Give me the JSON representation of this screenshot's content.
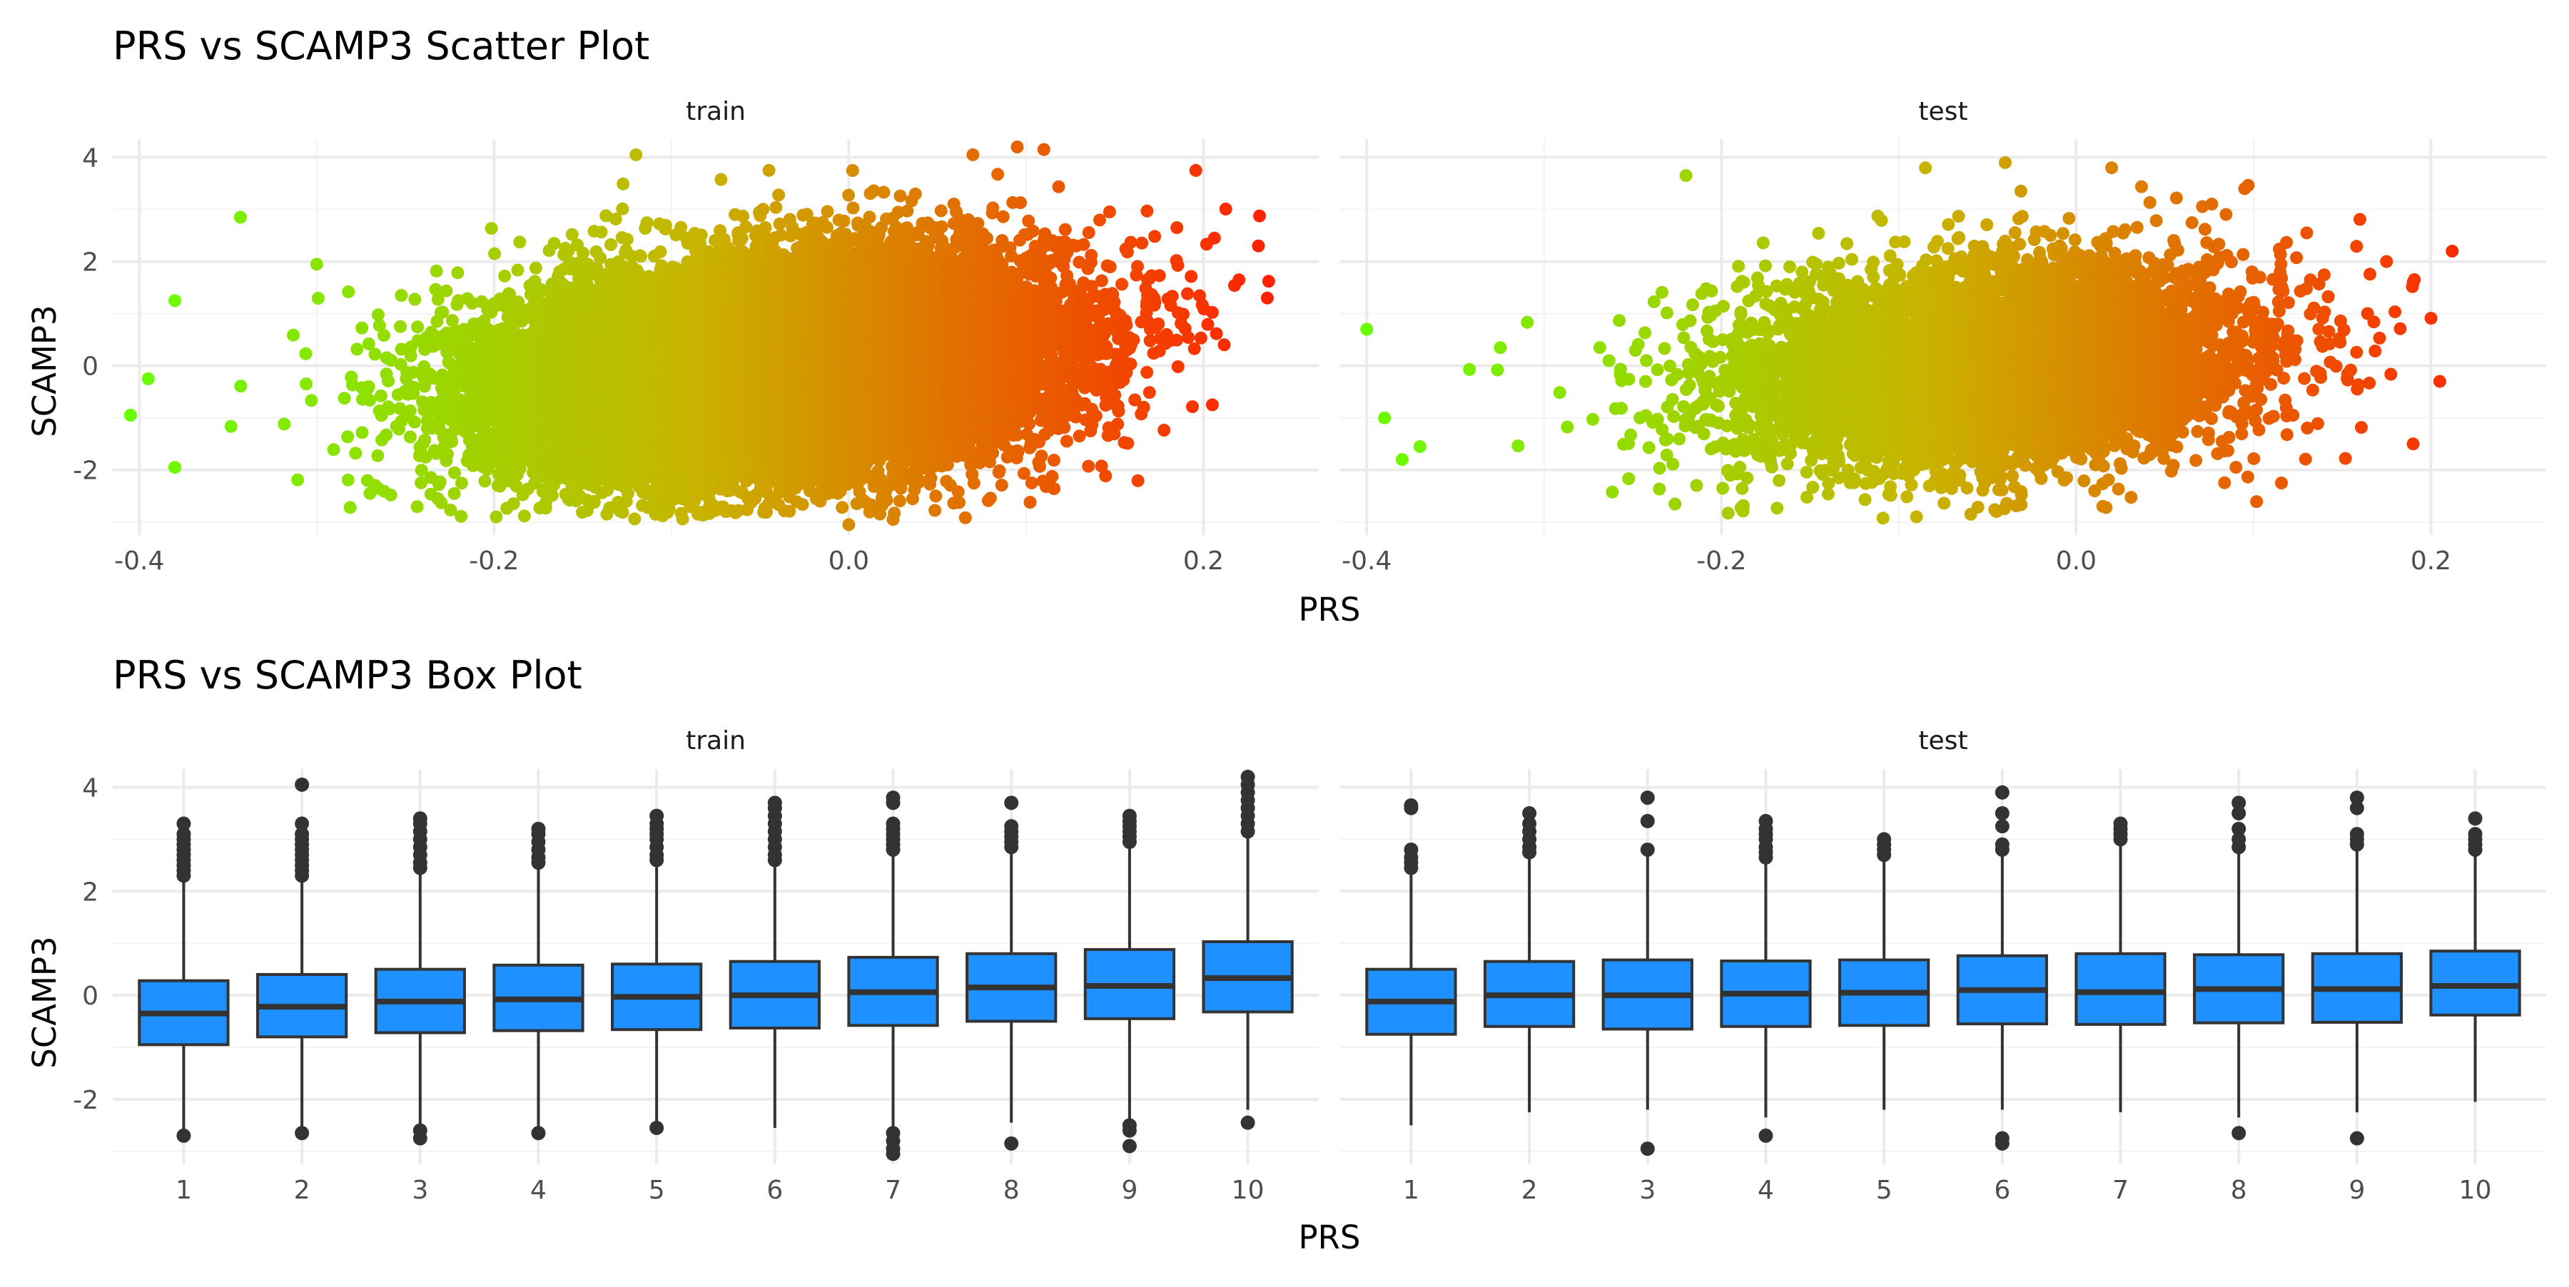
{
  "figure": {
    "scatter_title": "PRS vs SCAMP3 Scatter Plot",
    "box_title": "PRS vs SCAMP3 Box Plot"
  },
  "colors": {
    "low": "#66ff00",
    "mid": "#c8b400",
    "high": "#ff2200",
    "box_fill": "#1e90ff",
    "box_line": "#333333",
    "grid": "#ebebeb"
  },
  "chart_data": [
    {
      "type": "scatter",
      "title": "PRS vs SCAMP3 Scatter Plot",
      "xlabel": "PRS",
      "ylabel": "SCAMP3",
      "xlim": [
        -0.415,
        0.265
      ],
      "ylim": [
        -3.25,
        4.35
      ],
      "x_ticks": [
        -0.4,
        -0.2,
        0.0,
        0.2
      ],
      "x_tick_labels": [
        "-0.4",
        "-0.2",
        "0.0",
        "0.2"
      ],
      "y_ticks": [
        -2,
        0,
        2,
        4
      ],
      "y_tick_labels": [
        "-2",
        "0",
        "2",
        "4"
      ],
      "color_scale": {
        "variable": "PRS",
        "low": "#66ff00",
        "high": "#ff2200"
      },
      "grid": true,
      "panels": [
        {
          "name": "train",
          "approx_points": 20000,
          "x_mean": -0.04,
          "x_sd": 0.075,
          "y_mean": 0.0,
          "y_sd": 1.0,
          "slope": 2.8,
          "outliers": [
            {
              "x": -0.405,
              "y": -0.95
            },
            {
              "x": -0.395,
              "y": -0.25
            },
            {
              "x": -0.38,
              "y": 1.25
            },
            {
              "x": -0.38,
              "y": -1.95
            },
            {
              "x": -0.343,
              "y": 2.85
            },
            {
              "x": -0.3,
              "y": 1.95
            },
            {
              "x": -0.12,
              "y": 4.05
            },
            {
              "x": -0.045,
              "y": 3.75
            },
            {
              "x": 0.07,
              "y": 4.05
            },
            {
              "x": 0.095,
              "y": 4.2
            },
            {
              "x": 0.11,
              "y": 4.15
            },
            {
              "x": 0.185,
              "y": 2.65
            },
            {
              "x": 0.22,
              "y": 1.65
            },
            {
              "x": 0.231,
              "y": 2.3
            },
            {
              "x": 0.236,
              "y": 1.3
            },
            {
              "x": 0.205,
              "y": -0.75
            },
            {
              "x": 0.0,
              "y": -3.05
            },
            {
              "x": -0.085,
              "y": -2.85
            },
            {
              "x": 0.025,
              "y": -2.95
            },
            {
              "x": -0.27,
              "y": -2.45
            }
          ]
        },
        {
          "name": "test",
          "approx_points": 6500,
          "x_mean": -0.045,
          "x_sd": 0.072,
          "y_mean": 0.0,
          "y_sd": 0.95,
          "slope": 2.5,
          "outliers": [
            {
              "x": -0.4,
              "y": 0.7
            },
            {
              "x": -0.39,
              "y": -1.0
            },
            {
              "x": -0.38,
              "y": -1.8
            },
            {
              "x": -0.37,
              "y": -1.55
            },
            {
              "x": -0.22,
              "y": 3.65
            },
            {
              "x": -0.085,
              "y": 3.8
            },
            {
              "x": -0.04,
              "y": 3.9
            },
            {
              "x": 0.02,
              "y": 3.8
            },
            {
              "x": 0.095,
              "y": 3.4
            },
            {
              "x": 0.13,
              "y": 2.55
            },
            {
              "x": 0.175,
              "y": 2.0
            },
            {
              "x": 0.19,
              "y": 1.6
            },
            {
              "x": 0.212,
              "y": 2.2
            },
            {
              "x": 0.205,
              "y": -0.3
            },
            {
              "x": 0.19,
              "y": -1.5
            },
            {
              "x": -0.09,
              "y": -2.9
            },
            {
              "x": -0.045,
              "y": -2.8
            },
            {
              "x": 0.015,
              "y": -2.7
            }
          ]
        }
      ]
    },
    {
      "type": "box",
      "title": "PRS vs SCAMP3 Box Plot",
      "xlabel": "PRS",
      "ylabel": "SCAMP3",
      "ylim": [
        -3.25,
        4.35
      ],
      "y_ticks": [
        -2,
        0,
        2,
        4
      ],
      "y_tick_labels": [
        "-2",
        "0",
        "2",
        "4"
      ],
      "categories": [
        "1",
        "2",
        "3",
        "4",
        "5",
        "6",
        "7",
        "8",
        "9",
        "10"
      ],
      "grid": true,
      "panels": [
        {
          "name": "train",
          "boxes": [
            {
              "q1": -0.95,
              "median": -0.35,
              "q3": 0.28,
              "lo": -2.65,
              "hi": 2.2,
              "outliers": [
                2.3,
                2.4,
                2.5,
                2.6,
                2.7,
                2.8,
                2.9,
                3.0,
                3.1,
                3.3,
                -2.7
              ]
            },
            {
              "q1": -0.8,
              "median": -0.22,
              "q3": 0.4,
              "lo": -2.6,
              "hi": 2.25,
              "outliers": [
                2.3,
                2.4,
                2.5,
                2.6,
                2.7,
                2.8,
                2.9,
                3.0,
                3.1,
                3.3,
                4.05,
                -2.65
              ]
            },
            {
              "q1": -0.72,
              "median": -0.12,
              "q3": 0.5,
              "lo": -2.55,
              "hi": 2.4,
              "outliers": [
                2.45,
                2.55,
                2.7,
                2.85,
                3.0,
                3.15,
                3.3,
                3.4,
                -2.6,
                -2.75
              ]
            },
            {
              "q1": -0.68,
              "median": -0.08,
              "q3": 0.58,
              "lo": -2.55,
              "hi": 2.5,
              "outliers": [
                2.55,
                2.65,
                2.8,
                2.95,
                3.1,
                3.2,
                -2.65
              ]
            },
            {
              "q1": -0.66,
              "median": -0.03,
              "q3": 0.6,
              "lo": -2.5,
              "hi": 2.5,
              "outliers": [
                2.6,
                2.7,
                2.85,
                3.0,
                3.1,
                3.2,
                3.3,
                3.45,
                -2.55
              ]
            },
            {
              "q1": -0.63,
              "median": 0.0,
              "q3": 0.65,
              "lo": -2.55,
              "hi": 2.55,
              "outliers": [
                2.6,
                2.7,
                2.85,
                3.0,
                3.15,
                3.3,
                3.45,
                3.6,
                3.7
              ]
            },
            {
              "q1": -0.58,
              "median": 0.06,
              "q3": 0.73,
              "lo": -2.55,
              "hi": 2.75,
              "outliers": [
                2.8,
                2.9,
                3.0,
                3.1,
                3.2,
                3.3,
                3.7,
                3.8,
                -2.65,
                -2.8,
                -2.95,
                -3.05
              ]
            },
            {
              "q1": -0.5,
              "median": 0.15,
              "q3": 0.8,
              "lo": -2.45,
              "hi": 2.8,
              "outliers": [
                2.85,
                2.95,
                3.05,
                3.15,
                3.25,
                3.7,
                -2.85
              ]
            },
            {
              "q1": -0.45,
              "median": 0.18,
              "q3": 0.88,
              "lo": -2.4,
              "hi": 2.9,
              "outliers": [
                2.95,
                3.05,
                3.15,
                3.25,
                3.35,
                3.45,
                -2.5,
                -2.6,
                -2.9
              ]
            },
            {
              "q1": -0.32,
              "median": 0.33,
              "q3": 1.03,
              "lo": -2.2,
              "hi": 3.1,
              "outliers": [
                3.15,
                3.3,
                3.45,
                3.6,
                3.75,
                3.9,
                4.05,
                4.2,
                -2.45
              ]
            }
          ]
        },
        {
          "name": "test",
          "boxes": [
            {
              "q1": -0.75,
              "median": -0.12,
              "q3": 0.5,
              "lo": -2.5,
              "hi": 2.4,
              "outliers": [
                2.45,
                2.55,
                2.65,
                2.8,
                3.6,
                3.65
              ]
            },
            {
              "q1": -0.6,
              "median": 0.0,
              "q3": 0.65,
              "lo": -2.25,
              "hi": 2.7,
              "outliers": [
                2.75,
                2.85,
                3.0,
                3.15,
                3.3,
                3.5
              ]
            },
            {
              "q1": -0.65,
              "median": 0.0,
              "q3": 0.68,
              "lo": -2.2,
              "hi": 2.75,
              "outliers": [
                2.8,
                3.35,
                3.8,
                -2.95
              ]
            },
            {
              "q1": -0.6,
              "median": 0.03,
              "q3": 0.66,
              "lo": -2.35,
              "hi": 2.6,
              "outliers": [
                2.65,
                2.75,
                2.85,
                3.0,
                3.1,
                3.2,
                3.35,
                -2.7
              ]
            },
            {
              "q1": -0.58,
              "median": 0.05,
              "q3": 0.68,
              "lo": -2.2,
              "hi": 2.65,
              "outliers": [
                2.7,
                2.8,
                2.9,
                3.0
              ]
            },
            {
              "q1": -0.55,
              "median": 0.1,
              "q3": 0.76,
              "lo": -2.2,
              "hi": 2.75,
              "outliers": [
                2.8,
                2.9,
                3.25,
                3.5,
                3.9,
                -2.75,
                -2.85
              ]
            },
            {
              "q1": -0.56,
              "median": 0.06,
              "q3": 0.8,
              "lo": -2.25,
              "hi": 2.95,
              "outliers": [
                3.0,
                3.1,
                3.2,
                3.3
              ]
            },
            {
              "q1": -0.53,
              "median": 0.12,
              "q3": 0.78,
              "lo": -2.35,
              "hi": 2.8,
              "outliers": [
                2.85,
                3.0,
                3.2,
                3.5,
                3.7,
                -2.65
              ]
            },
            {
              "q1": -0.52,
              "median": 0.12,
              "q3": 0.8,
              "lo": -2.25,
              "hi": 2.85,
              "outliers": [
                2.9,
                3.0,
                3.1,
                3.6,
                3.8,
                -2.75
              ]
            },
            {
              "q1": -0.38,
              "median": 0.18,
              "q3": 0.85,
              "lo": -2.05,
              "hi": 2.75,
              "outliers": [
                2.8,
                2.9,
                3.0,
                3.1,
                3.4
              ]
            }
          ]
        }
      ]
    }
  ]
}
